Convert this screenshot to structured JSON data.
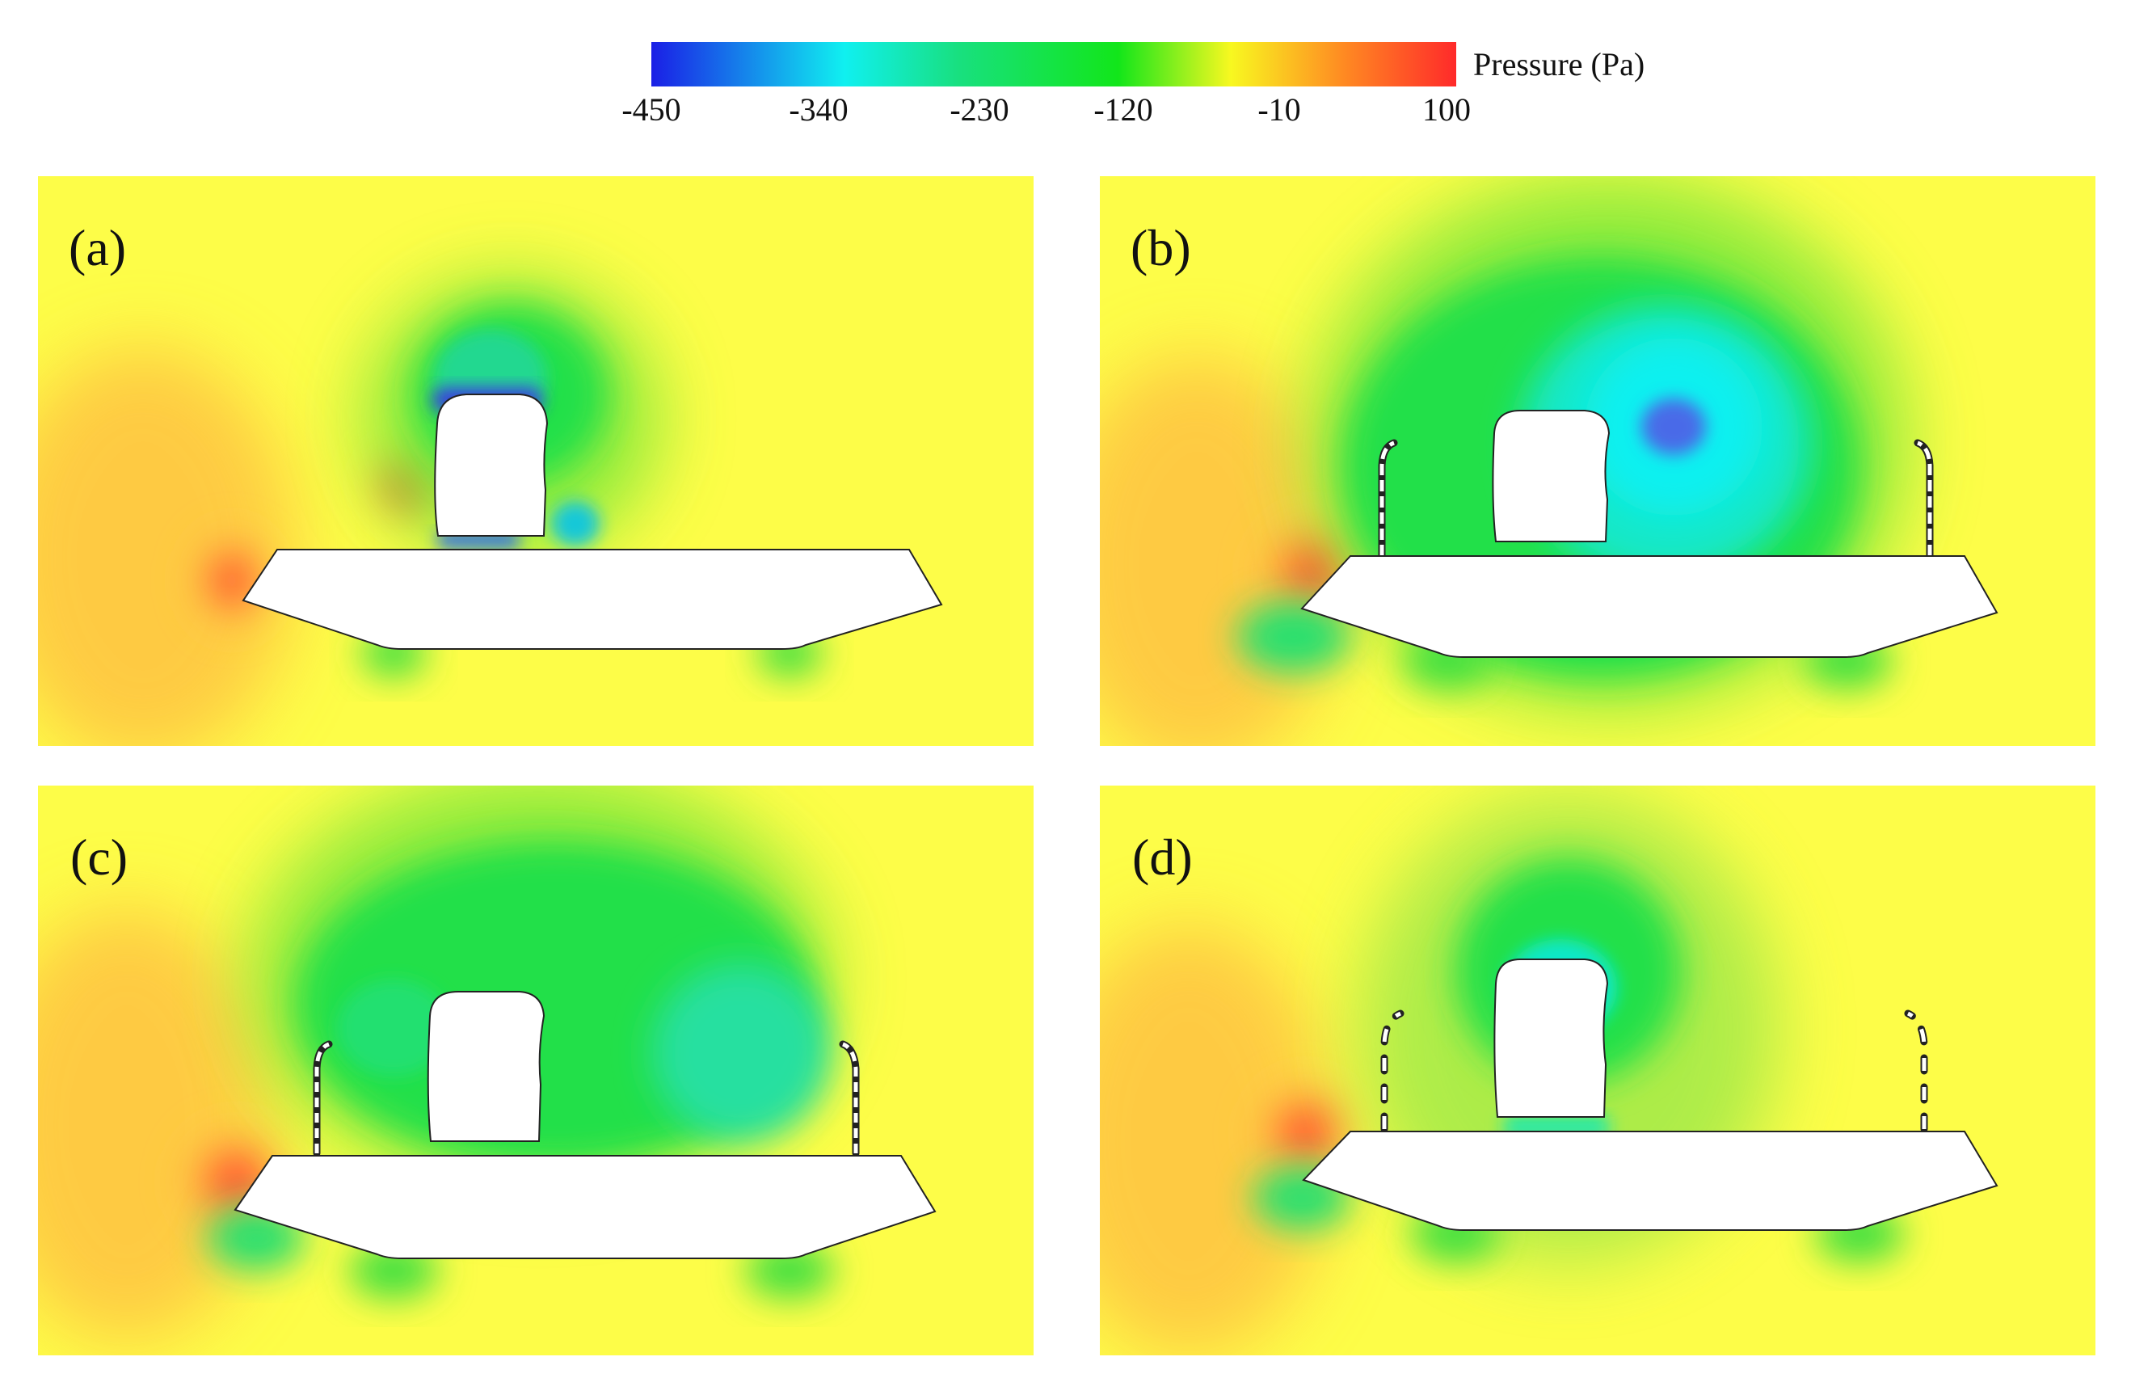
{
  "colorbar": {
    "title": "Pressure (Pa)",
    "ticks": [
      "-450",
      "-340",
      "-230",
      "-120",
      "-10",
      "100"
    ],
    "colors": [
      "#1a1fe6",
      "#10f0f0",
      "#18e080",
      "#12e61a",
      "#f8f820",
      "#ff8a22",
      "#ff2a2a"
    ]
  },
  "panels": [
    {
      "label": "(a)"
    },
    {
      "label": "(b)"
    },
    {
      "label": "(c)"
    },
    {
      "label": "(d)"
    }
  ]
}
